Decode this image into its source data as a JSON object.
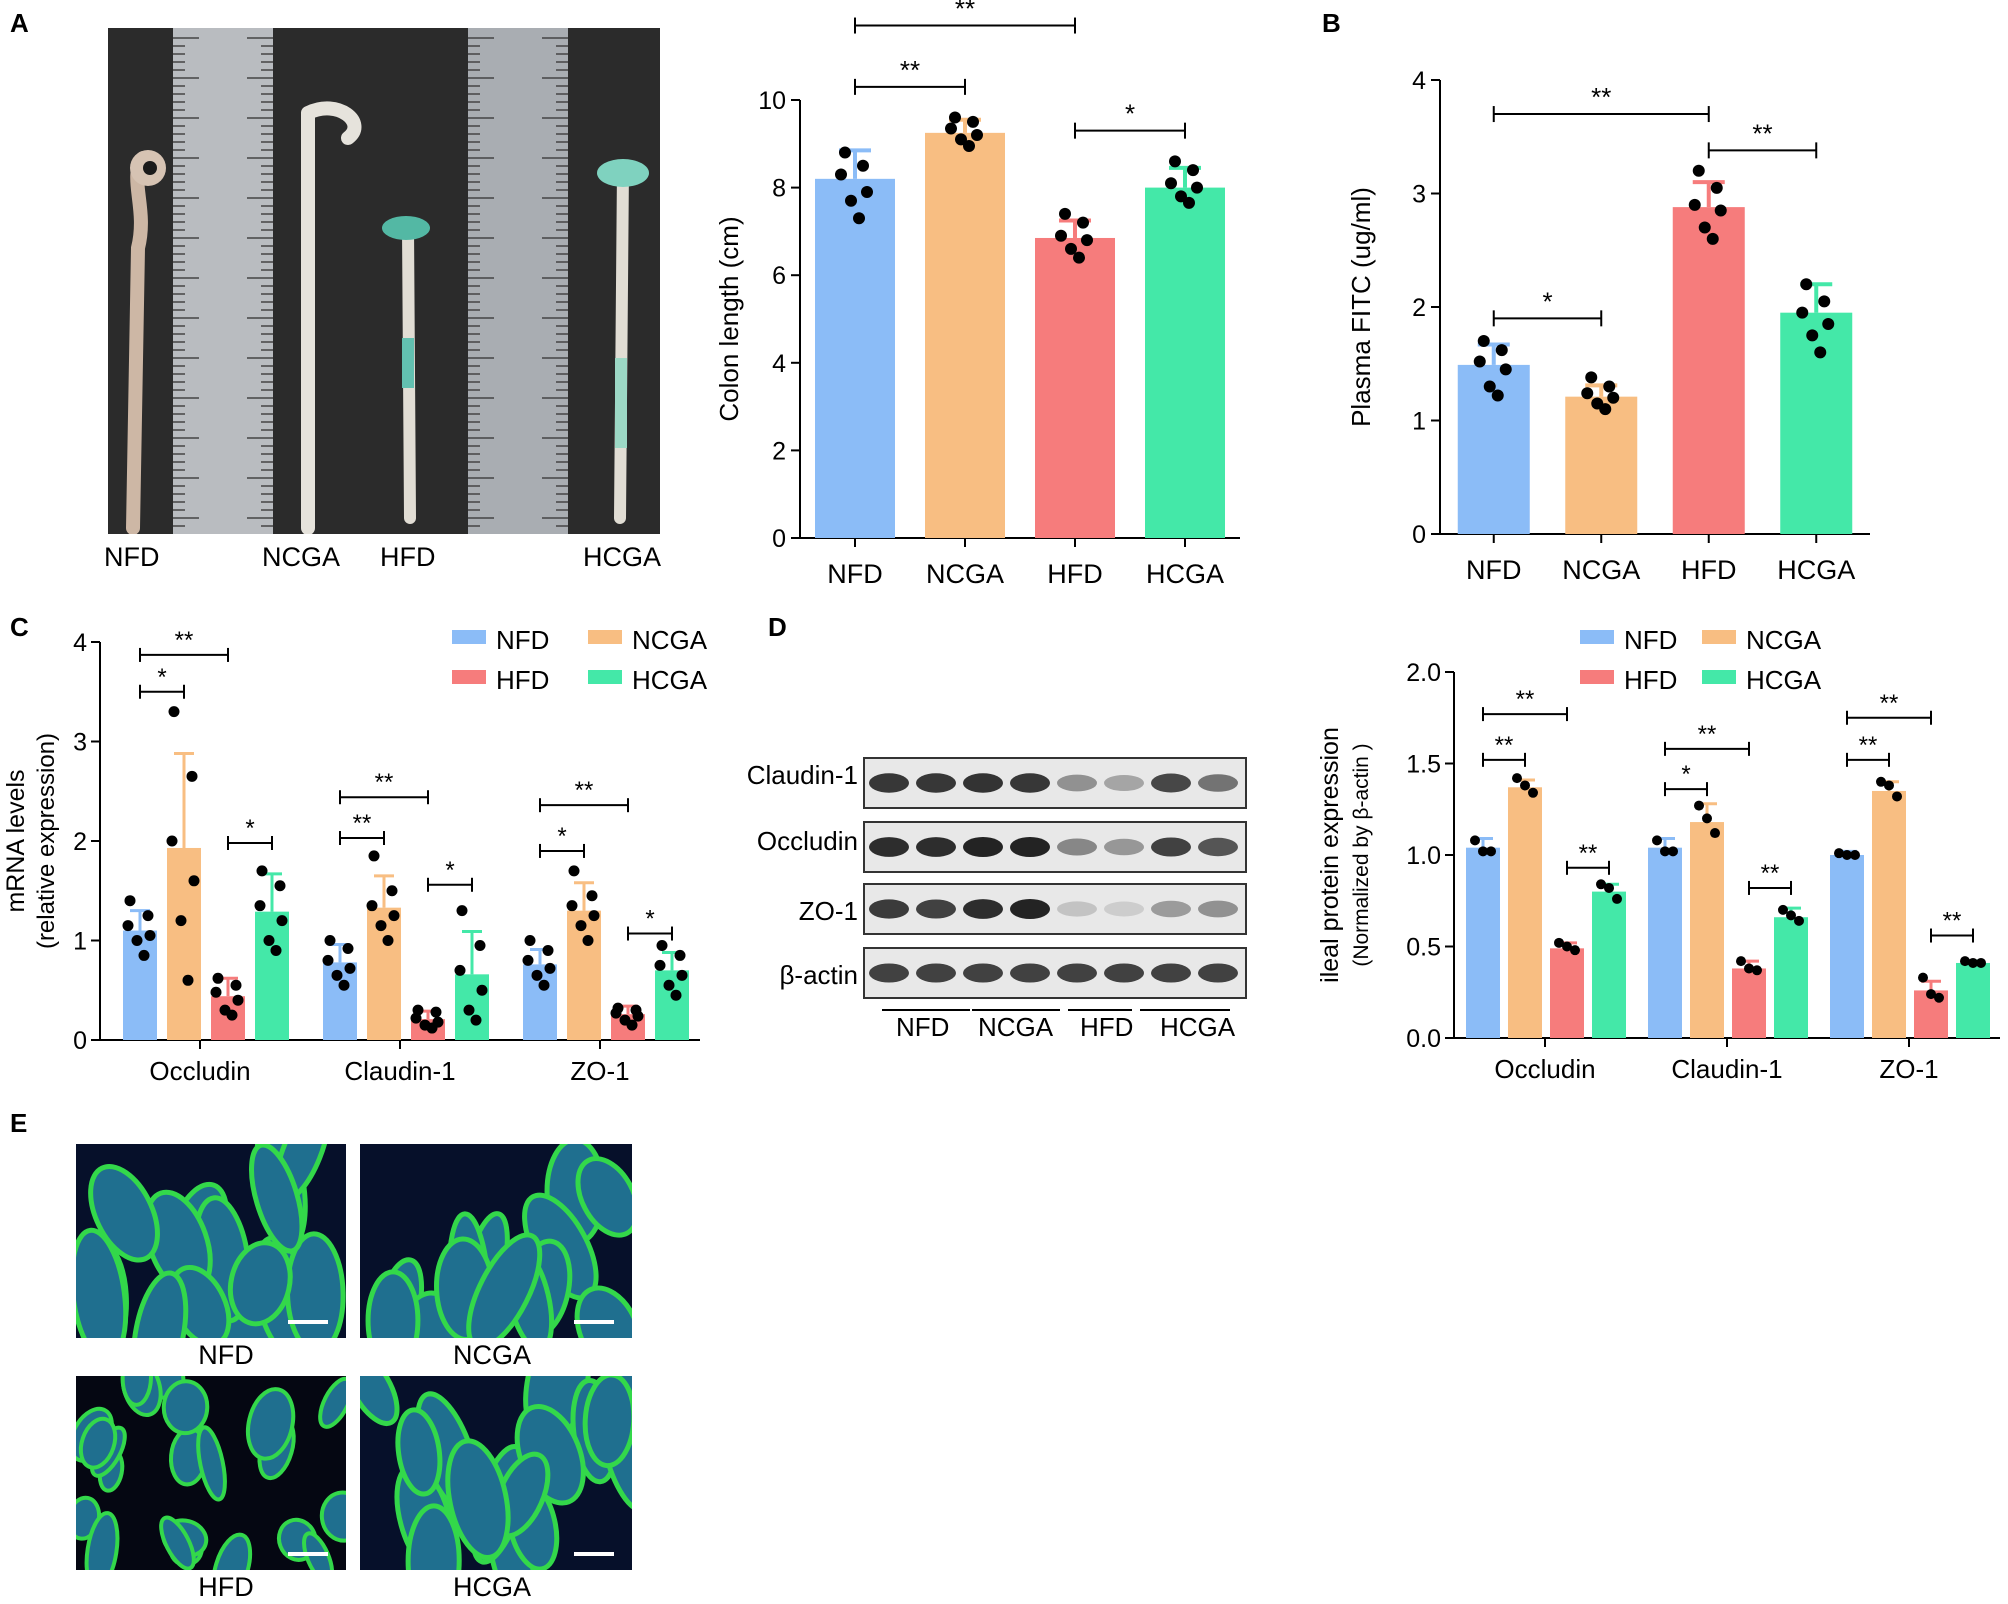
{
  "panels": {
    "A": "A",
    "B": "B",
    "C": "C",
    "D": "D",
    "E": "E"
  },
  "colors": {
    "NFD": "#8bbcf7",
    "NCGA": "#f8be82",
    "HFD": "#f67c7c",
    "HCGA": "#44e8a8"
  },
  "photo_labels": [
    "NFD",
    "NCGA",
    "HFD",
    "HCGA"
  ],
  "western_blot": {
    "row_labels": [
      "Claudin-1",
      "Occludin",
      "ZO-1",
      "β-actin"
    ],
    "group_labels": [
      "NFD",
      "NCGA",
      "HFD",
      "HCGA"
    ],
    "band_intensity": [
      [
        0.9,
        0.9,
        0.92,
        0.9,
        0.45,
        0.35,
        0.82,
        0.6
      ],
      [
        0.95,
        0.95,
        1.0,
        1.0,
        0.5,
        0.42,
        0.85,
        0.75
      ],
      [
        0.88,
        0.85,
        0.95,
        1.0,
        0.2,
        0.15,
        0.4,
        0.45
      ],
      [
        0.85,
        0.85,
        0.85,
        0.85,
        0.85,
        0.85,
        0.85,
        0.85
      ]
    ]
  },
  "if_labels": [
    "NFD",
    "NCGA",
    "HFD",
    "HCGA"
  ],
  "chart_data": [
    {
      "id": "A-colon",
      "type": "bar",
      "categories": [
        "NFD",
        "NCGA",
        "HFD",
        "HCGA"
      ],
      "values": [
        8.2,
        9.25,
        6.85,
        8.0
      ],
      "errors": [
        0.65,
        0.3,
        0.4,
        0.45
      ],
      "points": [
        [
          8.8,
          8.5,
          8.3,
          7.9,
          7.7,
          7.3
        ],
        [
          9.6,
          9.5,
          9.35,
          9.2,
          9.1,
          8.95
        ],
        [
          7.4,
          7.2,
          6.9,
          6.8,
          6.6,
          6.4
        ],
        [
          8.6,
          8.4,
          8.1,
          8.0,
          7.8,
          7.65
        ]
      ],
      "ylabel": "Colon length (cm)",
      "ylim": [
        0,
        10
      ],
      "yticks": [
        0,
        2,
        4,
        6,
        8,
        10
      ],
      "significance": [
        {
          "from": 0,
          "to": 1,
          "label": "**",
          "level": 10.3
        },
        {
          "from": 0,
          "to": 2,
          "label": "**",
          "level": 11.7
        },
        {
          "from": 2,
          "to": 3,
          "label": "*",
          "level": 9.3
        }
      ]
    },
    {
      "id": "B-fitc",
      "type": "bar",
      "categories": [
        "NFD",
        "NCGA",
        "HFD",
        "HCGA"
      ],
      "values": [
        1.49,
        1.21,
        2.88,
        1.95
      ],
      "errors": [
        0.18,
        0.1,
        0.22,
        0.25
      ],
      "points": [
        [
          1.7,
          1.62,
          1.52,
          1.45,
          1.3,
          1.22
        ],
        [
          1.38,
          1.3,
          1.24,
          1.2,
          1.15,
          1.1
        ],
        [
          3.2,
          3.05,
          2.9,
          2.85,
          2.7,
          2.6
        ],
        [
          2.2,
          2.05,
          1.95,
          1.85,
          1.75,
          1.6
        ]
      ],
      "ylabel": "Plasma FITC (ug/ml)",
      "ylim": [
        0,
        4
      ],
      "yticks": [
        0,
        1,
        2,
        3,
        4
      ],
      "significance": [
        {
          "from": 0,
          "to": 1,
          "label": "*",
          "level": 1.9
        },
        {
          "from": 0,
          "to": 2,
          "label": "**",
          "level": 3.7
        },
        {
          "from": 2,
          "to": 3,
          "label": "**",
          "level": 3.38
        }
      ]
    },
    {
      "id": "C-mrna",
      "type": "bar",
      "categories": [
        "Occludin",
        "Claudin-1",
        "ZO-1"
      ],
      "series": [
        {
          "name": "NFD",
          "values": [
            1.1,
            0.78,
            0.76
          ],
          "errors": [
            0.2,
            0.18,
            0.15
          ],
          "points": [
            [
              1.4,
              1.25,
              1.15,
              1.05,
              1.0,
              0.85
            ],
            [
              1.0,
              0.92,
              0.8,
              0.72,
              0.65,
              0.55
            ],
            [
              1.0,
              0.9,
              0.8,
              0.72,
              0.65,
              0.55
            ]
          ]
        },
        {
          "name": "NCGA",
          "values": [
            1.93,
            1.33,
            1.3
          ],
          "errors": [
            0.95,
            0.32,
            0.28
          ],
          "points": [
            [
              3.3,
              2.65,
              2.0,
              1.6,
              1.2,
              0.6
            ],
            [
              1.85,
              1.5,
              1.35,
              1.25,
              1.15,
              1.0
            ],
            [
              1.7,
              1.45,
              1.35,
              1.25,
              1.15,
              1.0
            ]
          ]
        },
        {
          "name": "HFD",
          "values": [
            0.44,
            0.21,
            0.26
          ],
          "errors": [
            0.18,
            0.08,
            0.08
          ],
          "points": [
            [
              0.62,
              0.55,
              0.48,
              0.4,
              0.3,
              0.25
            ],
            [
              0.3,
              0.28,
              0.22,
              0.18,
              0.15,
              0.12
            ],
            [
              0.32,
              0.3,
              0.27,
              0.24,
              0.2,
              0.15
            ]
          ]
        },
        {
          "name": "HCGA",
          "values": [
            1.29,
            0.66,
            0.7
          ],
          "errors": [
            0.38,
            0.43,
            0.18
          ],
          "points": [
            [
              1.7,
              1.55,
              1.35,
              1.2,
              1.0,
              0.9
            ],
            [
              1.3,
              0.95,
              0.7,
              0.5,
              0.3,
              0.2
            ],
            [
              0.95,
              0.85,
              0.75,
              0.65,
              0.55,
              0.45
            ]
          ]
        }
      ],
      "ylabel": "mRNA levels",
      "ylabel2": "(relative expression)",
      "ylim": [
        0,
        4
      ],
      "yticks": [
        0,
        1,
        2,
        3,
        4
      ],
      "legend": [
        "NFD",
        "NCGA",
        "HFD",
        "HCGA"
      ],
      "significance": [
        {
          "group": 0,
          "from": 0,
          "to": 1,
          "label": "*",
          "level": 3.5
        },
        {
          "group": 0,
          "from": 0,
          "to": 2,
          "label": "**",
          "level": 3.87
        },
        {
          "group": 0,
          "from": 2,
          "to": 3,
          "label": "*",
          "level": 1.98
        },
        {
          "group": 1,
          "from": 0,
          "to": 1,
          "label": "**",
          "level": 2.03
        },
        {
          "group": 1,
          "from": 0,
          "to": 2,
          "label": "**",
          "level": 2.44
        },
        {
          "group": 1,
          "from": 2,
          "to": 3,
          "label": "*",
          "level": 1.56
        },
        {
          "group": 2,
          "from": 0,
          "to": 1,
          "label": "*",
          "level": 1.9
        },
        {
          "group": 2,
          "from": 0,
          "to": 2,
          "label": "**",
          "level": 2.36
        },
        {
          "group": 2,
          "from": 2,
          "to": 3,
          "label": "*",
          "level": 1.07
        }
      ]
    },
    {
      "id": "D-protein",
      "type": "bar",
      "categories": [
        "Occludin",
        "Claudin-1",
        "ZO-1"
      ],
      "series": [
        {
          "name": "NFD",
          "values": [
            1.04,
            1.04,
            1.0
          ],
          "errors": [
            0.05,
            0.05,
            0.02
          ],
          "points": [
            [
              1.08,
              1.02,
              1.02
            ],
            [
              1.08,
              1.02,
              1.02
            ],
            [
              1.01,
              1.0,
              1.0
            ]
          ]
        },
        {
          "name": "NCGA",
          "values": [
            1.37,
            1.18,
            1.35
          ],
          "errors": [
            0.04,
            0.1,
            0.05
          ],
          "points": [
            [
              1.42,
              1.38,
              1.34
            ],
            [
              1.27,
              1.2,
              1.12
            ],
            [
              1.4,
              1.38,
              1.32
            ]
          ]
        },
        {
          "name": "HFD",
          "values": [
            0.49,
            0.38,
            0.26
          ],
          "errors": [
            0.03,
            0.04,
            0.05
          ],
          "points": [
            [
              0.52,
              0.5,
              0.48
            ],
            [
              0.42,
              0.38,
              0.37
            ],
            [
              0.33,
              0.24,
              0.22
            ]
          ]
        },
        {
          "name": "HCGA",
          "values": [
            0.8,
            0.66,
            0.41
          ],
          "errors": [
            0.04,
            0.05,
            0.01
          ],
          "points": [
            [
              0.84,
              0.82,
              0.76
            ],
            [
              0.7,
              0.67,
              0.64
            ],
            [
              0.42,
              0.41,
              0.41
            ]
          ]
        }
      ],
      "ylabel": "ileal protein expression",
      "ylabel2": "(Normalized by β-actin )",
      "ylim": [
        0,
        2.0
      ],
      "yticks": [
        0.0,
        0.5,
        1.0,
        1.5,
        2.0
      ],
      "legend": [
        "NFD",
        "NCGA",
        "HFD",
        "HCGA"
      ],
      "significance": [
        {
          "group": 0,
          "from": 0,
          "to": 1,
          "label": "**",
          "level": 1.52
        },
        {
          "group": 0,
          "from": 0,
          "to": 2,
          "label": "**",
          "level": 1.77
        },
        {
          "group": 0,
          "from": 2,
          "to": 3,
          "label": "**",
          "level": 0.93
        },
        {
          "group": 1,
          "from": 0,
          "to": 1,
          "label": "*",
          "level": 1.36
        },
        {
          "group": 1,
          "from": 0,
          "to": 2,
          "label": "**",
          "level": 1.58
        },
        {
          "group": 1,
          "from": 2,
          "to": 3,
          "label": "**",
          "level": 0.82
        },
        {
          "group": 2,
          "from": 0,
          "to": 1,
          "label": "**",
          "level": 1.52
        },
        {
          "group": 2,
          "from": 0,
          "to": 2,
          "label": "**",
          "level": 1.75
        },
        {
          "group": 2,
          "from": 2,
          "to": 3,
          "label": "**",
          "level": 0.56
        }
      ]
    }
  ]
}
